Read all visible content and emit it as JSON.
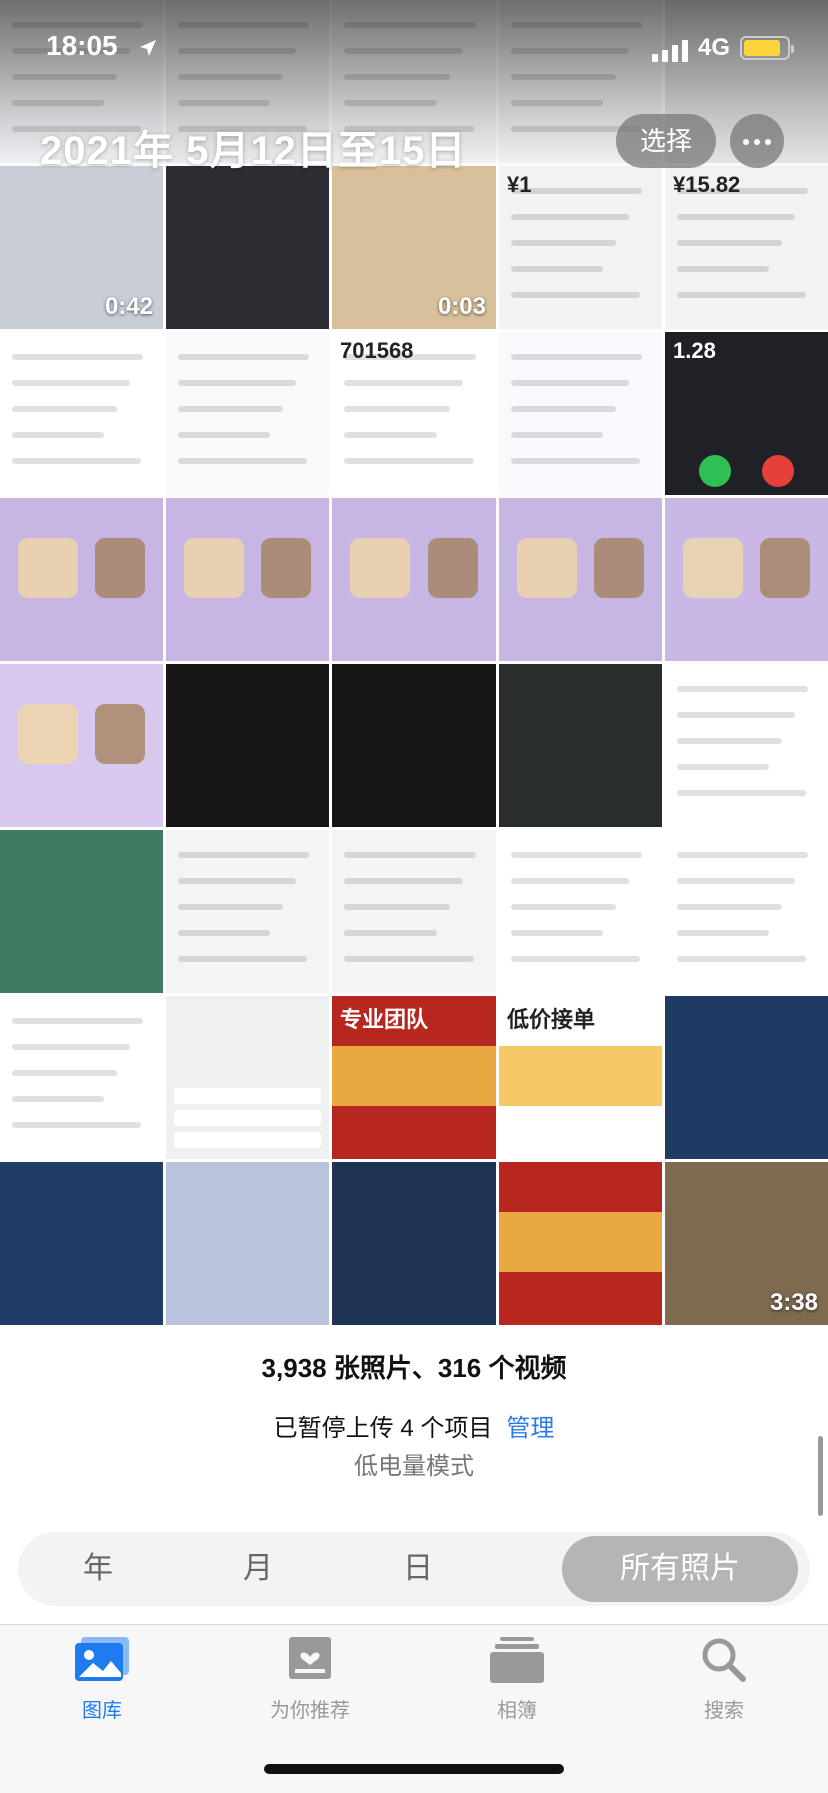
{
  "status_bar": {
    "time": "18:05",
    "network": "4G"
  },
  "header": {
    "date_range": "2021年 5月12日至15日",
    "select_label": "选择"
  },
  "tiles": [
    {
      "kind": "chat",
      "bg": "#f3f5f8"
    },
    {
      "kind": "chat",
      "bg": "#eef0f2"
    },
    {
      "kind": "chat",
      "bg": "#f6f6f6"
    },
    {
      "kind": "chat",
      "bg": "#f5f5f5"
    },
    {
      "kind": "dark",
      "bg": "#e9e9e9"
    },
    {
      "kind": "video",
      "bg": "#c9ced6",
      "duration": "0:42"
    },
    {
      "kind": "video",
      "bg": "#2b2d32",
      "duration": ""
    },
    {
      "kind": "video",
      "bg": "#d8c19a",
      "duration": "0:03"
    },
    {
      "kind": "doc",
      "bg": "#f2f2f2",
      "text": "¥1"
    },
    {
      "kind": "doc",
      "bg": "#f2f2f2",
      "text": "¥15.82"
    },
    {
      "kind": "doc",
      "bg": "#ffffff"
    },
    {
      "kind": "doc",
      "bg": "#f7f9fb"
    },
    {
      "kind": "doc",
      "bg": "#ffffff",
      "text": "701568"
    },
    {
      "kind": "doc",
      "bg": "#f7f9fc"
    },
    {
      "kind": "call",
      "bg": "#1f2126",
      "text": "1.28"
    },
    {
      "kind": "game",
      "bg": "#c7b5e3"
    },
    {
      "kind": "game",
      "bg": "#c7b5e3"
    },
    {
      "kind": "game",
      "bg": "#c7b5e3"
    },
    {
      "kind": "game",
      "bg": "#c7b5e3"
    },
    {
      "kind": "game",
      "bg": "#c9b8e6"
    },
    {
      "kind": "game",
      "bg": "#d7c9ee"
    },
    {
      "kind": "dark",
      "bg": "#161616"
    },
    {
      "kind": "dark",
      "bg": "#161616"
    },
    {
      "kind": "dark",
      "bg": "#2a2e2a"
    },
    {
      "kind": "doc",
      "bg": "#ffffff"
    },
    {
      "kind": "scene",
      "bg": "#3f7a62"
    },
    {
      "kind": "chat",
      "bg": "#f4f4f4"
    },
    {
      "kind": "chat",
      "bg": "#f4f4f4"
    },
    {
      "kind": "doc",
      "bg": "#ffffff"
    },
    {
      "kind": "doc",
      "bg": "#ffffff"
    },
    {
      "kind": "doc",
      "bg": "#ffffff"
    },
    {
      "kind": "keyboard",
      "bg": "#f0f0f0"
    },
    {
      "kind": "ad",
      "bg": "#b7261f",
      "text": "专业团队"
    },
    {
      "kind": "ad",
      "bg": "#ffffff",
      "text": "低价接单"
    },
    {
      "kind": "dark",
      "bg": "#1f3b63"
    },
    {
      "kind": "dark",
      "bg": "#223c6a"
    },
    {
      "kind": "scene",
      "bg": "#b9c3dd"
    },
    {
      "kind": "dark",
      "bg": "#1d3454"
    },
    {
      "kind": "ad",
      "bg": "#b7261f",
      "text": ""
    },
    {
      "kind": "video",
      "bg": "#7d6a4f",
      "duration": "3:38"
    }
  ],
  "footer": {
    "summary": "3,938 张照片、316 个视频",
    "upload_text": "已暂停上传 4 个项目",
    "manage_label": "管理",
    "low_power": "低电量模式"
  },
  "segments": [
    "年",
    "月",
    "日",
    "所有照片"
  ],
  "tabs": [
    {
      "label": "图库",
      "icon": "photo-library-icon"
    },
    {
      "label": "为你推荐",
      "icon": "for-you-icon"
    },
    {
      "label": "相簿",
      "icon": "albums-icon"
    },
    {
      "label": "搜索",
      "icon": "search-icon"
    }
  ],
  "colors": {
    "accent": "#1f7cf0",
    "battery": "#ffd43b"
  }
}
